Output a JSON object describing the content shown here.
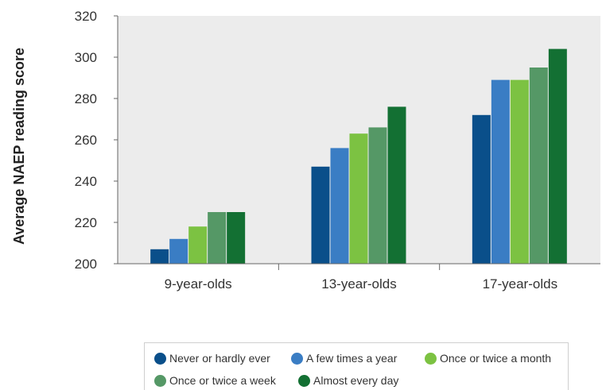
{
  "chart_data": {
    "type": "bar",
    "title": "",
    "xlabel": "",
    "ylabel": "Average NAEP reading score",
    "ylim": [
      200,
      320
    ],
    "yticks": [
      "200",
      "220",
      "240",
      "260",
      "280",
      "300",
      "320"
    ],
    "categories": [
      "9-year-olds",
      "13-year-olds",
      "17-year-olds"
    ],
    "series": [
      {
        "name": "Never or hardly ever",
        "color": "#0a4f8a",
        "values": [
          207,
          247,
          272
        ]
      },
      {
        "name": "A few times a year",
        "color": "#3a7dc4",
        "values": [
          212,
          256,
          289
        ]
      },
      {
        "name": "Once or twice a month",
        "color": "#7cc242",
        "values": [
          218,
          263,
          289
        ]
      },
      {
        "name": "Once or twice a week",
        "color": "#559866",
        "values": [
          225,
          266,
          295
        ]
      },
      {
        "name": "Almost every day",
        "color": "#137033",
        "values": [
          225,
          276,
          304
        ]
      }
    ],
    "grid": false,
    "legend_position": "bottom",
    "plot_background": "#ececec"
  }
}
